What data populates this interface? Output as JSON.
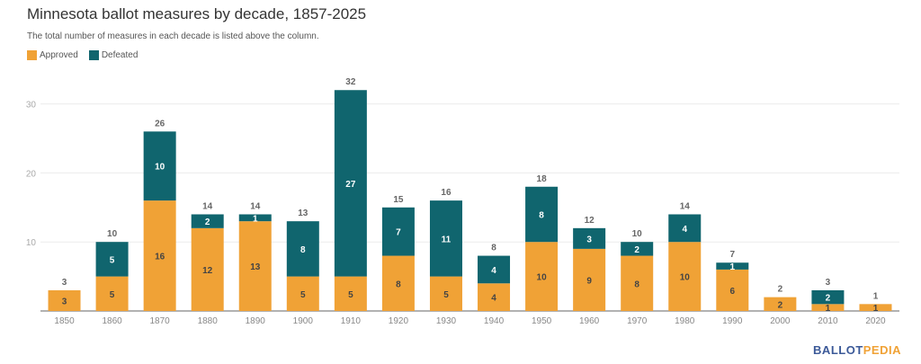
{
  "header": {
    "title": "Minnesota ballot measures by decade, 1857-2025",
    "subtitle": "The total number of measures in each decade is listed above the column."
  },
  "logo": {
    "part1": "BALLOT",
    "part2": "PEDIA",
    "color1": "#3b5998",
    "color2": "#f0a236"
  },
  "chart_data": {
    "type": "bar",
    "stacked": true,
    "title": "Minnesota ballot measures by decade, 1857-2025",
    "xlabel": "",
    "ylabel": "",
    "ylim": [
      0,
      33
    ],
    "yticks": [
      10,
      20,
      30
    ],
    "grid": true,
    "legend_position": "top-left",
    "categories": [
      "1850",
      "1860",
      "1870",
      "1880",
      "1890",
      "1900",
      "1910",
      "1920",
      "1930",
      "1940",
      "1950",
      "1960",
      "1970",
      "1980",
      "1990",
      "2000",
      "2010",
      "2020"
    ],
    "series": [
      {
        "name": "Approved",
        "color": "#f0a236",
        "values": [
          3,
          5,
          16,
          12,
          13,
          5,
          5,
          8,
          5,
          4,
          10,
          9,
          8,
          10,
          6,
          2,
          1,
          1
        ]
      },
      {
        "name": "Defeated",
        "color": "#10656e",
        "values": [
          0,
          5,
          10,
          2,
          1,
          8,
          27,
          7,
          11,
          4,
          8,
          3,
          2,
          4,
          1,
          0,
          2,
          0
        ]
      }
    ],
    "totals": [
      3,
      10,
      26,
      14,
      14,
      13,
      32,
      15,
      16,
      8,
      18,
      12,
      10,
      14,
      7,
      2,
      3,
      1
    ]
  }
}
